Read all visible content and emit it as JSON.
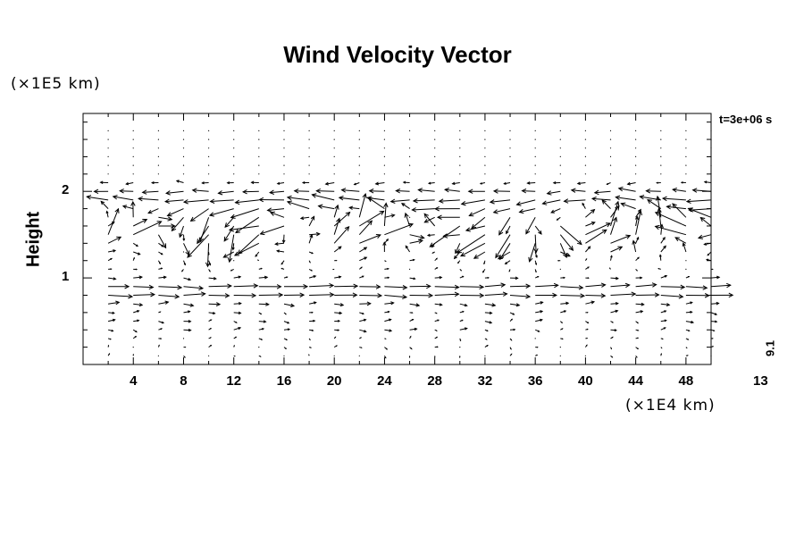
{
  "chart_data": {
    "type": "quiver",
    "title": "Wind Velocity Vector",
    "ylabel": "Height",
    "y_unit_label": "(×1E5 km)",
    "x_unit_label": "(×1E4 km)",
    "time_label": "t=3e+06 s",
    "reference_vector_label": "9.1",
    "reference_vector_length_label": "13",
    "xlim": [
      0,
      50
    ],
    "ylim": [
      0,
      2.9
    ],
    "xticks": [
      "4",
      "8",
      "12",
      "16",
      "20",
      "24",
      "28",
      "32",
      "36",
      "40",
      "44",
      "48"
    ],
    "yticks": [
      "1",
      "2"
    ],
    "grid": false,
    "arrow_color": "#000000",
    "field": {
      "x_start": 2,
      "x_step": 2,
      "x_count": 25,
      "y_start": 0.1,
      "y_step": 0.1,
      "y_count": 27,
      "jet_centers": [
        0.85,
        1.9
      ],
      "shear_band": 1.55
    }
  }
}
